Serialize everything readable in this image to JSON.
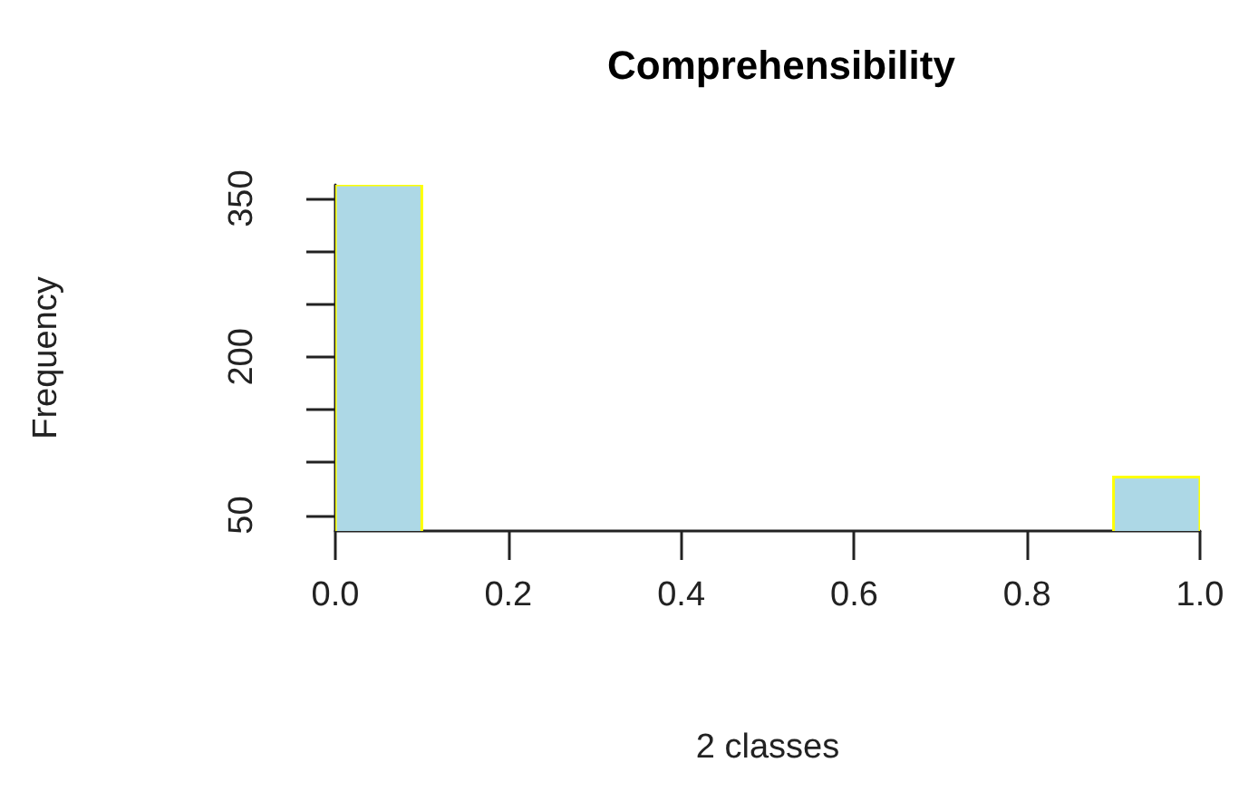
{
  "chart_data": {
    "type": "histogram",
    "title": "Comprehensibility",
    "xlabel": "2 classes",
    "ylabel": "Frequency",
    "bins": [
      0,
      0.1,
      0.2,
      0.3,
      0.4,
      0.5,
      0.6,
      0.7,
      0.8,
      0.9,
      1.0
    ],
    "values": [
      363,
      null,
      null,
      null,
      null,
      null,
      null,
      null,
      null,
      86
    ],
    "color": "#add8e6",
    "xlim": [
      0,
      1
    ],
    "xticks": [
      {
        "value": 0,
        "label": "0.0"
      },
      {
        "value": 0.2,
        "label": "0.2"
      },
      {
        "value": 0.4,
        "label": "0.4"
      },
      {
        "value": 0.6,
        "label": "0.6"
      },
      {
        "value": 0.8,
        "label": "0.8"
      },
      {
        "value": 1,
        "label": "1.0"
      }
    ],
    "ylim": [
      35,
      363
    ],
    "yticks": [
      50,
      {
        "value": 100,
        "label": null
      },
      {
        "value": 150,
        "label": null
      },
      200,
      {
        "value": 250,
        "label": null
      },
      {
        "value": 300,
        "label": null
      },
      350
    ],
    "grid": false
  }
}
